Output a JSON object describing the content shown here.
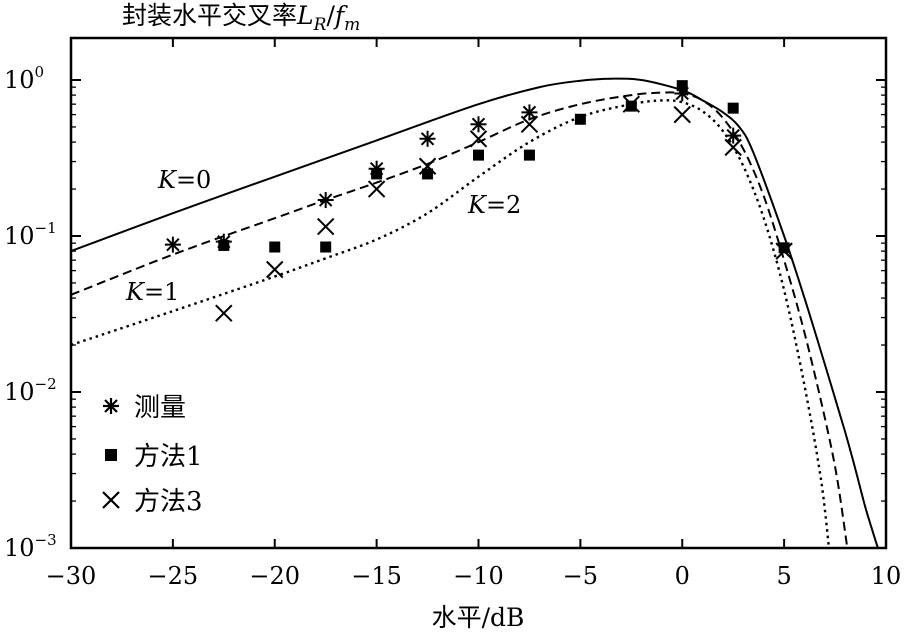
{
  "chart_data": {
    "type": "line",
    "title": "封装水平交叉率L_R/f_m",
    "title_parts": {
      "prefix": "封装水平交叉率",
      "var": "L",
      "sub": "R",
      "slash": "/",
      "var2": "f",
      "sub2": "m"
    },
    "xlabel": "水平/dB",
    "xlim": [
      -30,
      10
    ],
    "ylim": [
      0.001,
      1.5
    ],
    "yscale": "log",
    "grid": false,
    "x_ticks": [
      -30,
      -25,
      -20,
      -15,
      -10,
      -5,
      0,
      5,
      10
    ],
    "x_tick_labels": [
      "−30",
      "−25",
      "−20",
      "−15",
      "−10",
      "−5",
      "0",
      "5",
      "10"
    ],
    "y_ticks": [
      {
        "value": 1,
        "base": "10",
        "exp": "0"
      },
      {
        "value": 0.1,
        "base": "10",
        "exp": "−1"
      },
      {
        "value": 0.01,
        "base": "10",
        "exp": "−2"
      },
      {
        "value": 0.001,
        "base": "10",
        "exp": "−3"
      }
    ],
    "series": [
      {
        "label": "K=0",
        "label_var": "K",
        "label_rest": "=0",
        "style": "solid",
        "x": [
          -30,
          -25,
          -20,
          -15,
          -10,
          -7,
          -5,
          -3.5,
          -2,
          0,
          1,
          2,
          2.8,
          3.5,
          5,
          6,
          7,
          8,
          8.5,
          9,
          9.6
        ],
        "y": [
          0.08,
          0.14,
          0.24,
          0.41,
          0.7,
          0.9,
          0.99,
          1.02,
          1.0,
          0.86,
          0.74,
          0.62,
          0.5,
          0.34,
          0.1,
          0.04,
          0.015,
          0.0055,
          0.0032,
          0.0018,
          0.001
        ]
      },
      {
        "label": "K=1",
        "label_var": "K",
        "label_rest": "=1",
        "style": "dashed",
        "x": [
          -30,
          -25,
          -20,
          -17.5,
          -15,
          -12.5,
          -10,
          -7.5,
          -5,
          -2.5,
          -1,
          0,
          1,
          2,
          3,
          4,
          5,
          6,
          7,
          7.6,
          8.1
        ],
        "y": [
          0.042,
          0.076,
          0.13,
          0.17,
          0.22,
          0.29,
          0.4,
          0.56,
          0.7,
          0.8,
          0.83,
          0.82,
          0.74,
          0.57,
          0.36,
          0.18,
          0.07,
          0.024,
          0.0068,
          0.0028,
          0.001
        ]
      },
      {
        "label": "K=2",
        "label_var": "K",
        "label_rest": "=2",
        "style": "dotted",
        "x": [
          -30,
          -25,
          -20,
          -17.5,
          -15,
          -12.5,
          -10,
          -7.5,
          -5,
          -2.5,
          -1,
          0,
          1,
          2,
          3,
          4,
          5,
          6,
          6.8,
          7.2
        ],
        "y": [
          0.02,
          0.033,
          0.055,
          0.072,
          0.095,
          0.14,
          0.24,
          0.4,
          0.58,
          0.7,
          0.74,
          0.72,
          0.63,
          0.47,
          0.28,
          0.13,
          0.045,
          0.011,
          0.0028,
          0.001
        ]
      }
    ],
    "markers": [
      {
        "label": "测量",
        "symbol": "asterisk",
        "x": [
          -25,
          -22.5,
          -17.5,
          -15,
          -12.5,
          -10,
          -7.5,
          0,
          2.5
        ],
        "y": [
          0.088,
          0.092,
          0.17,
          0.27,
          0.42,
          0.52,
          0.62,
          0.82,
          0.44
        ]
      },
      {
        "label": "方法1",
        "symbol": "square",
        "x": [
          -22.5,
          -20,
          -17.5,
          -15,
          -12.5,
          -10,
          -7.5,
          -5,
          -2.5,
          0,
          2.5,
          5
        ],
        "y": [
          0.087,
          0.085,
          0.085,
          0.25,
          0.25,
          0.33,
          0.33,
          0.56,
          0.68,
          0.92,
          0.66,
          0.084
        ]
      },
      {
        "label": "方法3",
        "symbol": "cross",
        "x": [
          -22.5,
          -20,
          -17.5,
          -15,
          -12.5,
          -10,
          -7.5,
          -2.5,
          0,
          2.5,
          5
        ],
        "y": [
          0.032,
          0.061,
          0.115,
          0.2,
          0.28,
          0.42,
          0.52,
          0.7,
          0.6,
          0.37,
          0.08
        ]
      }
    ],
    "legend": {
      "position": "bottom-left",
      "entries": [
        "测量",
        "方法1",
        "方法3"
      ]
    }
  }
}
